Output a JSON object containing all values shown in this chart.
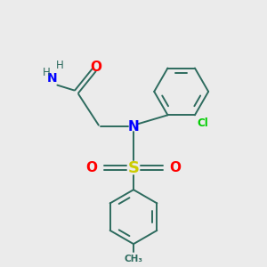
{
  "background_color": "#ebebeb",
  "bond_color": "#2d6b5e",
  "N_color": "#0000ff",
  "O_color": "#ff0000",
  "S_color": "#cccc00",
  "Cl_color": "#00cc00",
  "figsize": [
    3.0,
    3.0
  ],
  "dpi": 100,
  "xlim": [
    0,
    10
  ],
  "ylim": [
    0,
    10
  ]
}
